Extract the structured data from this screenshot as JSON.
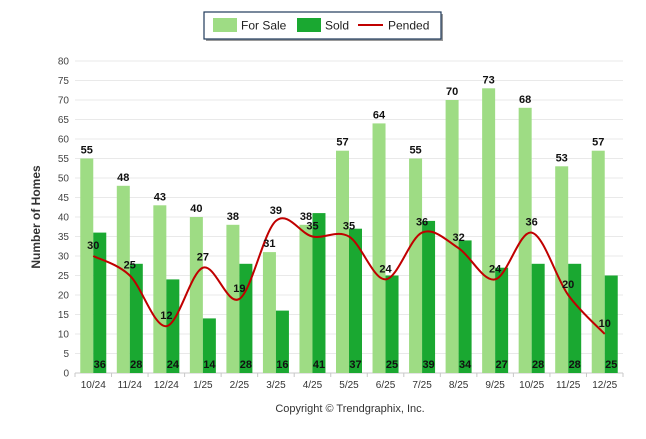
{
  "chart_data": {
    "type": "bar",
    "categories": [
      "10/24",
      "11/24",
      "12/24",
      "1/25",
      "2/25",
      "3/25",
      "4/25",
      "5/25",
      "6/25",
      "7/25",
      "8/25",
      "9/25",
      "10/25",
      "11/25",
      "12/25"
    ],
    "series": [
      {
        "name": "For Sale",
        "type": "bar",
        "color": "#9edc84",
        "values": [
          55,
          48,
          43,
          40,
          38,
          31,
          38,
          57,
          64,
          55,
          70,
          73,
          68,
          53,
          57
        ]
      },
      {
        "name": "Sold",
        "type": "bar",
        "color": "#1aa831",
        "values": [
          36,
          28,
          24,
          14,
          28,
          16,
          41,
          37,
          25,
          39,
          34,
          27,
          28,
          28,
          25
        ]
      },
      {
        "name": "Pended",
        "type": "line",
        "color": "#c00000",
        "values": [
          30,
          25,
          12,
          27,
          19,
          39,
          35,
          35,
          24,
          36,
          32,
          24,
          36,
          20,
          10
        ]
      }
    ],
    "ylabel": "Number of Homes",
    "xlabel": "",
    "ylim": [
      0,
      80
    ],
    "yticks": [
      0,
      5,
      10,
      15,
      20,
      25,
      30,
      35,
      40,
      45,
      50,
      55,
      60,
      65,
      70,
      75,
      80
    ],
    "grid": true,
    "legend_position": "top-center",
    "footer": "Copyright © Trendgraphix, Inc."
  }
}
